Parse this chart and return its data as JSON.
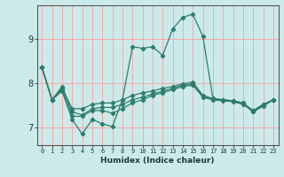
{
  "xlabel": "Humidex (Indice chaleur)",
  "bg_color": "#cdeaea",
  "grid_color": "#f5aaaa",
  "line_color": "#2d7d6e",
  "xlim": [
    -0.5,
    23.5
  ],
  "ylim": [
    6.6,
    9.75
  ],
  "yticks": [
    7,
    8,
    9
  ],
  "xticks": [
    0,
    1,
    2,
    3,
    4,
    5,
    6,
    7,
    8,
    9,
    10,
    11,
    12,
    13,
    14,
    15,
    16,
    17,
    18,
    19,
    20,
    21,
    22,
    23
  ],
  "lines": [
    [
      8.35,
      7.62,
      7.82,
      7.18,
      6.85,
      7.18,
      7.08,
      7.02,
      7.62,
      8.82,
      8.78,
      8.82,
      8.62,
      9.22,
      9.48,
      9.55,
      9.05,
      7.65,
      7.62,
      7.6,
      7.55,
      7.35,
      7.48,
      7.62
    ],
    [
      8.35,
      7.62,
      7.85,
      7.25,
      7.25,
      7.38,
      7.38,
      7.32,
      7.42,
      7.55,
      7.62,
      7.72,
      7.78,
      7.85,
      7.92,
      7.95,
      7.68,
      7.62,
      7.6,
      7.58,
      7.52,
      7.35,
      7.5,
      7.62
    ],
    [
      8.35,
      7.62,
      7.88,
      7.42,
      7.42,
      7.52,
      7.55,
      7.55,
      7.62,
      7.72,
      7.78,
      7.82,
      7.88,
      7.92,
      7.98,
      8.02,
      7.72,
      7.65,
      7.62,
      7.6,
      7.55,
      7.38,
      7.52,
      7.62
    ],
    [
      8.35,
      7.62,
      7.92,
      7.35,
      7.28,
      7.42,
      7.45,
      7.45,
      7.52,
      7.62,
      7.68,
      7.75,
      7.82,
      7.88,
      7.95,
      7.98,
      7.7,
      7.63,
      7.61,
      7.59,
      7.53,
      7.37,
      7.51,
      7.62
    ]
  ]
}
